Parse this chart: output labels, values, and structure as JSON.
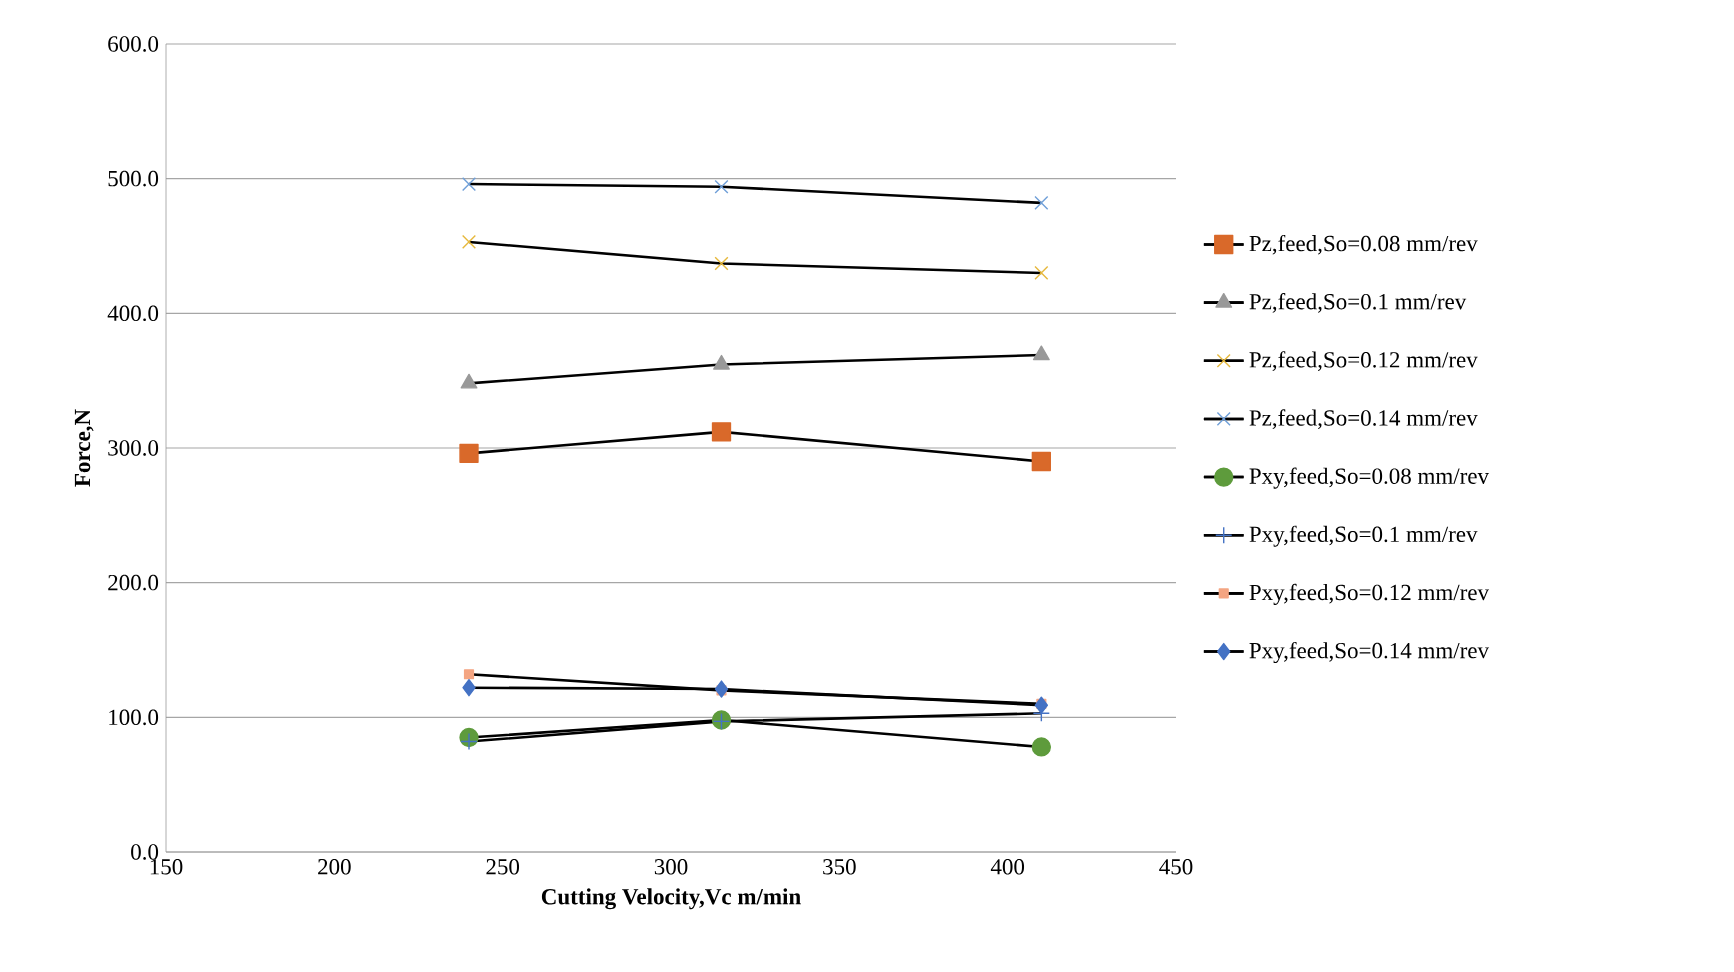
{
  "chart_data": {
    "type": "line",
    "xlabel": "Cutting  Velocity,Vc m/min",
    "ylabel": "Force,N",
    "x": [
      240,
      315,
      410
    ],
    "xlim": [
      150,
      450
    ],
    "xticks": [
      150,
      200,
      250,
      300,
      350,
      400,
      450
    ],
    "ylim": [
      0,
      600
    ],
    "yticks": [
      {
        "value": 0,
        "label": "0.0"
      },
      {
        "value": 100,
        "label": "100.0"
      },
      {
        "value": 200,
        "label": "200.0"
      },
      {
        "value": 300,
        "label": "300.0"
      },
      {
        "value": 400,
        "label": "400.0"
      },
      {
        "value": 500,
        "label": "500.0"
      },
      {
        "value": 600,
        "label": "600.0"
      }
    ],
    "grid": "y",
    "legend": "right",
    "line_style": "solid",
    "series": [
      {
        "name": "Pz,feed,So=0.08 mm/rev",
        "color": "#d9692a",
        "marker": "square",
        "values": [
          296,
          312,
          290
        ]
      },
      {
        "name": "Pz,feed,So=0.1 mm/rev",
        "color": "#999999",
        "marker": "triangle",
        "values": [
          348,
          362,
          369
        ]
      },
      {
        "name": "Pz,feed,So=0.12 mm/rev",
        "color": "#e6b83c",
        "marker": "cross",
        "values": [
          453,
          437,
          430
        ]
      },
      {
        "name": "Pz,feed,So=0.14 mm/rev",
        "color": "#6f9fd8",
        "marker": "cross",
        "values": [
          496,
          494,
          482
        ]
      },
      {
        "name": "Pxy,feed,So=0.08 mm/rev",
        "color": "#5e9b3c",
        "marker": "circle",
        "values": [
          85,
          98,
          78
        ]
      },
      {
        "name": "Pxy,feed,So=0.1 mm/rev",
        "color": "#4472c4",
        "marker": "plus",
        "values": [
          82,
          97,
          103
        ]
      },
      {
        "name": "Pxy,feed,So=0.12 mm/rev",
        "color": "#f4a582",
        "marker": "square",
        "values": [
          132,
          120,
          110
        ]
      },
      {
        "name": "Pxy,feed,So=0.14 mm/rev",
        "color": "#4472c4",
        "marker": "diamond",
        "values": [
          122,
          121,
          109
        ]
      }
    ]
  }
}
